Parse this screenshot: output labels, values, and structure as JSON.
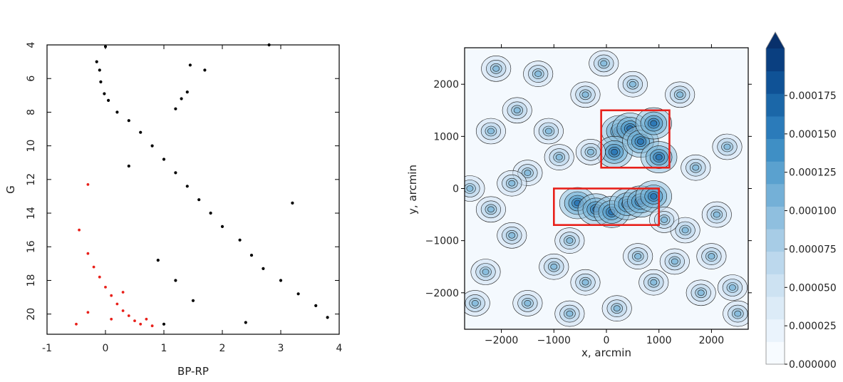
{
  "chart_data": [
    {
      "type": "scatter",
      "title": "",
      "xlabel": "BP-RP",
      "ylabel": "G",
      "xlim": [
        -1,
        4
      ],
      "ylim": [
        21.2,
        4
      ],
      "y_inverted": true,
      "xticks": [
        "-1",
        "0",
        "1",
        "2",
        "3",
        "4"
      ],
      "yticks": [
        "4",
        "6",
        "8",
        "10",
        "12",
        "14",
        "16",
        "18",
        "20"
      ],
      "grid": false,
      "colors": {
        "field_stars": "#000000",
        "selected_stars": "#e8201a"
      },
      "series": [
        {
          "color": "#000000",
          "values": [
            [
              -0.15,
              5.0
            ],
            [
              -0.1,
              5.5
            ],
            [
              -0.08,
              6.2
            ],
            [
              -0.02,
              6.9
            ],
            [
              0.05,
              7.3
            ],
            [
              0.2,
              8.0
            ],
            [
              0.4,
              8.5
            ],
            [
              0.6,
              9.2
            ],
            [
              0.8,
              10.0
            ],
            [
              1.0,
              10.8
            ],
            [
              1.2,
              11.6
            ],
            [
              1.4,
              12.4
            ],
            [
              1.6,
              13.2
            ],
            [
              1.8,
              14.0
            ],
            [
              2.0,
              14.8
            ],
            [
              2.3,
              15.6
            ],
            [
              2.5,
              16.5
            ],
            [
              2.7,
              17.3
            ],
            [
              3.0,
              18.0
            ],
            [
              3.3,
              18.8
            ],
            [
              3.6,
              19.5
            ],
            [
              3.8,
              20.2
            ],
            [
              1.3,
              7.2
            ],
            [
              1.2,
              7.8
            ],
            [
              1.4,
              6.8
            ],
            [
              1.45,
              5.2
            ],
            [
              1.7,
              5.5
            ],
            [
              2.8,
              4.0
            ],
            [
              0.0,
              4.1
            ],
            [
              0.4,
              11.2
            ],
            [
              3.2,
              13.4
            ],
            [
              2.4,
              20.5
            ],
            [
              1.0,
              20.6
            ],
            [
              1.5,
              19.2
            ],
            [
              1.2,
              18.0
            ],
            [
              0.9,
              16.8
            ]
          ]
        },
        {
          "color": "#e8201a",
          "values": [
            [
              -0.3,
              12.3
            ],
            [
              -0.45,
              15.0
            ],
            [
              -0.3,
              16.4
            ],
            [
              -0.2,
              17.2
            ],
            [
              -0.1,
              17.8
            ],
            [
              0.0,
              18.4
            ],
            [
              0.1,
              18.9
            ],
            [
              0.2,
              19.4
            ],
            [
              0.3,
              19.8
            ],
            [
              0.4,
              20.1
            ],
            [
              0.5,
              20.4
            ],
            [
              0.6,
              20.6
            ],
            [
              0.7,
              20.3
            ],
            [
              0.8,
              20.7
            ],
            [
              -0.5,
              20.6
            ],
            [
              -0.3,
              19.9
            ],
            [
              0.1,
              20.3
            ],
            [
              0.3,
              18.7
            ]
          ]
        }
      ]
    },
    {
      "type": "heatmap",
      "title": "",
      "xlabel": "x, arcmin",
      "ylabel": "y, arcmin",
      "xlim": [
        -2700,
        2700
      ],
      "ylim": [
        -2700,
        2700
      ],
      "xticks": [
        "−2000",
        "−1000",
        "0",
        "1000",
        "2000"
      ],
      "yticks": [
        "−2000",
        "−1000",
        "0",
        "1000",
        "2000"
      ],
      "colorbar": {
        "min": 0.0,
        "max": 0.000175,
        "ticks": [
          "0.000000",
          "0.000025",
          "0.000050",
          "0.000075",
          "0.000100",
          "0.000125",
          "0.000150",
          "0.000175"
        ],
        "extend": "max",
        "levels": 14,
        "colors": [
          "#f7fbff",
          "#e3eef9",
          "#cfe1f2",
          "#b5d4e9",
          "#93c3df",
          "#6daed5",
          "#4b97c9",
          "#2f7ebc",
          "#1864aa",
          "#0a4a90",
          "#08306b"
        ]
      },
      "highlight_regions": [
        {
          "x": [
            -100,
            1200
          ],
          "y": [
            400,
            1500
          ],
          "color": "#e8201a"
        },
        {
          "x": [
            -1000,
            1000
          ],
          "y": [
            -700,
            0
          ],
          "color": "#e8201a"
        }
      ],
      "peaks": [
        [
          -550,
          -280
        ],
        [
          -200,
          -400
        ],
        [
          100,
          -450
        ],
        [
          400,
          -300
        ],
        [
          650,
          -250
        ],
        [
          900,
          -150
        ],
        [
          250,
          1100
        ],
        [
          450,
          1150
        ],
        [
          150,
          700
        ],
        [
          650,
          900
        ],
        [
          900,
          1250
        ],
        [
          1000,
          600
        ],
        [
          -1500,
          300
        ],
        [
          -1100,
          1100
        ],
        [
          -1700,
          1500
        ],
        [
          -2200,
          1100
        ],
        [
          -2600,
          0
        ],
        [
          -1800,
          100
        ],
        [
          -900,
          600
        ],
        [
          -300,
          700
        ],
        [
          1500,
          -800
        ],
        [
          2000,
          -1300
        ],
        [
          2400,
          -1900
        ],
        [
          1800,
          -2000
        ],
        [
          900,
          -1800
        ],
        [
          200,
          -2300
        ],
        [
          -400,
          -1800
        ],
        [
          -1000,
          -1500
        ],
        [
          -1800,
          -900
        ],
        [
          -2300,
          -1600
        ],
        [
          -1500,
          -2200
        ],
        [
          -700,
          -2400
        ],
        [
          1700,
          400
        ],
        [
          2300,
          800
        ],
        [
          1400,
          1800
        ],
        [
          -400,
          1800
        ],
        [
          -1300,
          2200
        ],
        [
          -2100,
          2300
        ],
        [
          -50,
          2400
        ],
        [
          1300,
          -1400
        ],
        [
          -700,
          -1000
        ],
        [
          600,
          -1300
        ],
        [
          1100,
          -600
        ],
        [
          2100,
          -500
        ],
        [
          -2500,
          -2200
        ],
        [
          2500,
          -2400
        ],
        [
          500,
          2000
        ],
        [
          -2200,
          -400
        ]
      ]
    }
  ]
}
